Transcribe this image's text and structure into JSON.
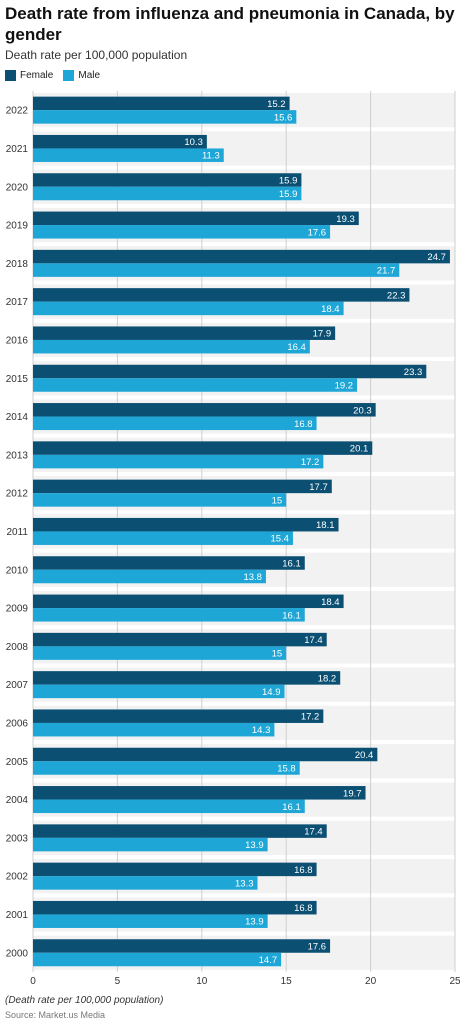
{
  "chart_data": {
    "type": "bar",
    "orientation": "horizontal",
    "title": "Death rate from influenza and pneumonia in Canada, by gender",
    "subtitle": "Death rate per 100,000 population",
    "categories": [
      "2022",
      "2021",
      "2020",
      "2019",
      "2018",
      "2017",
      "2016",
      "2015",
      "2014",
      "2013",
      "2012",
      "2011",
      "2010",
      "2009",
      "2008",
      "2007",
      "2006",
      "2005",
      "2004",
      "2003",
      "2002",
      "2001",
      "2000"
    ],
    "series": [
      {
        "name": "Female",
        "color": "#0b4f73",
        "values": [
          15.2,
          10.3,
          15.9,
          19.3,
          24.7,
          22.3,
          17.9,
          23.3,
          20.3,
          20.1,
          17.7,
          18.1,
          16.1,
          18.4,
          17.4,
          18.2,
          17.2,
          20.4,
          19.7,
          17.4,
          16.8,
          16.8,
          17.6
        ]
      },
      {
        "name": "Male",
        "color": "#1ea6d6",
        "values": [
          15.6,
          11.3,
          15.9,
          17.6,
          21.7,
          18.4,
          16.4,
          19.2,
          16.8,
          17.2,
          15,
          15.4,
          13.8,
          16.1,
          15,
          14.9,
          14.3,
          15.8,
          16.1,
          13.9,
          13.3,
          13.9,
          14.7
        ]
      }
    ],
    "xlim": [
      0,
      25
    ],
    "xticks": [
      "0",
      "5",
      "10",
      "15",
      "20",
      "25"
    ],
    "grid": true,
    "legend_position": "top-left",
    "footnote": "(Death rate per 100,000 population)",
    "source": "Source: Market.us Media"
  }
}
